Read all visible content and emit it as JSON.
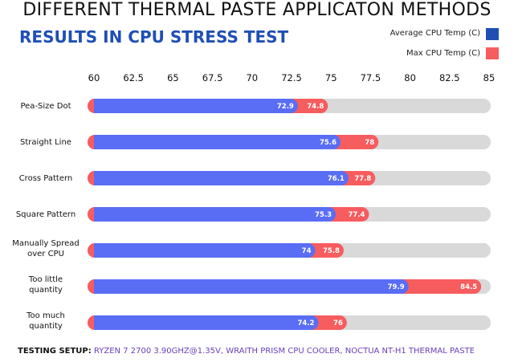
{
  "chart_data": {
    "type": "bar",
    "title": "DIFFERENT THERMAL PASTE APPLICATON METHODS",
    "subtitle": "RESULTS IN CPU STRESS TEST",
    "categories": [
      [
        "Pea-Size Dot"
      ],
      [
        "Straight Line"
      ],
      [
        "Cross Pattern"
      ],
      [
        "Square Pattern"
      ],
      [
        "Manually Spread",
        "over CPU"
      ],
      [
        "Too little",
        "quantity"
      ],
      [
        "Too much",
        "quantity"
      ]
    ],
    "series": [
      {
        "name": "Average CPU Temp (C)",
        "color": "#5a6df5",
        "values": [
          72.9,
          75.6,
          76.1,
          75.3,
          74,
          79.9,
          74.2
        ]
      },
      {
        "name": "Max CPU Temp (C)",
        "color": "#f75c5f",
        "values": [
          74.8,
          78,
          77.8,
          77.4,
          75.8,
          84.5,
          76
        ]
      }
    ],
    "value_labels": {
      "avg": [
        "72.9",
        "75.6",
        "76.1",
        "75.3",
        "74",
        "79.9",
        "74.2"
      ],
      "max": [
        "74.8",
        "78",
        "77.8",
        "77.4",
        "75.8",
        "84.5",
        "76"
      ]
    },
    "xlim": [
      60,
      85
    ],
    "ticks": [
      "60",
      "62.5",
      "65",
      "67.5",
      "70",
      "72.5",
      "75",
      "77.5",
      "80",
      "82.5",
      "85"
    ],
    "track_color": "#d9d9d9",
    "orientation": "horizontal",
    "legend_position": "top-right"
  },
  "legend": {
    "avg_label": "Average CPU Temp (C)",
    "avg_color": "#1f4fb5",
    "max_label": "Max CPU Temp (C)",
    "max_color": "#f75c5f"
  },
  "footer": {
    "lead": "TESTING SETUP:",
    "value": "RYZEN 7 2700 3.90GHZ@1.35V, WRAITH PRISM CPU COOLER, NOCTUA NT-H1 THERMAL PASTE"
  }
}
